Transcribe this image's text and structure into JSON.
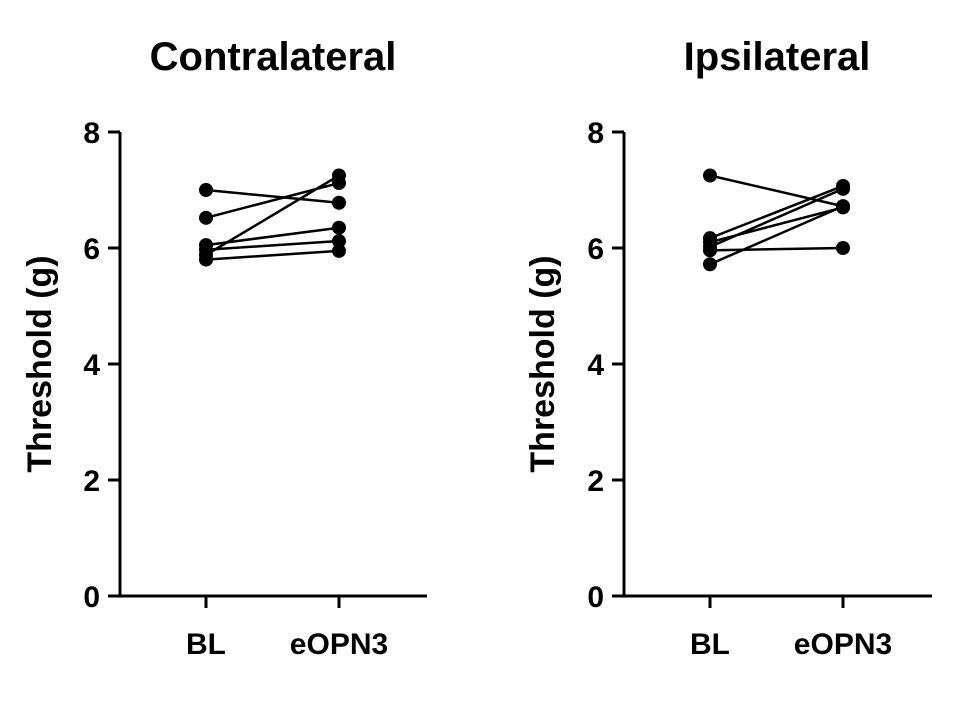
{
  "chart_data": [
    {
      "type": "line",
      "title": "Contralateral",
      "ylabel": "Threshold (g)",
      "xlabel": "",
      "categories": [
        "BL",
        "eOPN3"
      ],
      "ylim": [
        0,
        8
      ],
      "yticks": [
        "0",
        "2",
        "4",
        "6",
        "8"
      ],
      "grid": false,
      "series": [
        {
          "values": [
            7.0,
            6.78
          ]
        },
        {
          "values": [
            6.52,
            7.12
          ]
        },
        {
          "values": [
            6.05,
            6.35
          ]
        },
        {
          "values": [
            5.97,
            6.12
          ]
        },
        {
          "values": [
            5.88,
            7.25
          ]
        },
        {
          "values": [
            5.8,
            5.95
          ]
        }
      ]
    },
    {
      "type": "line",
      "title": "Ipsilateral",
      "ylabel": "Threshold (g)",
      "xlabel": "",
      "categories": [
        "BL",
        "eOPN3"
      ],
      "ylim": [
        0,
        8
      ],
      "yticks": [
        "0",
        "2",
        "4",
        "6",
        "8"
      ],
      "grid": false,
      "series": [
        {
          "values": [
            7.25,
            6.72
          ]
        },
        {
          "values": [
            6.17,
            7.07
          ]
        },
        {
          "values": [
            6.1,
            6.7
          ]
        },
        {
          "values": [
            6.02,
            7.02
          ]
        },
        {
          "values": [
            5.96,
            6.0
          ]
        },
        {
          "values": [
            5.72,
            6.72
          ]
        }
      ]
    }
  ]
}
